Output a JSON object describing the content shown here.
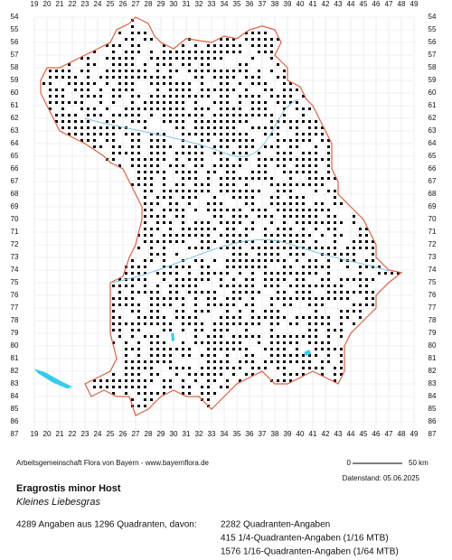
{
  "map": {
    "x_labels": [
      19,
      20,
      21,
      22,
      23,
      24,
      25,
      26,
      27,
      28,
      29,
      30,
      31,
      32,
      33,
      34,
      35,
      36,
      37,
      38,
      39,
      40,
      41,
      42,
      43,
      44,
      45,
      46,
      47,
      48,
      49
    ],
    "y_labels": [
      54,
      55,
      56,
      57,
      58,
      59,
      60,
      61,
      62,
      63,
      64,
      65,
      66,
      67,
      68,
      69,
      70,
      71,
      72,
      73,
      74,
      75,
      76,
      77,
      78,
      79,
      80,
      81,
      82,
      83,
      84,
      85,
      86,
      87
    ],
    "scale": {
      "start": "0",
      "end": "50 km"
    }
  },
  "credit": "Arbeitsgemeinschaft Flora von Bayern - www.bayernflora.de",
  "date": "Datenstand: 05.06.2025",
  "species": {
    "scientific": "Eragrostis minor Host",
    "common": "Kleines Liebesgras"
  },
  "stats": {
    "summary": "4289 Angaben aus 1296 Quadranten, davon:",
    "lines": [
      "2282 Quadranten-Angaben",
      "415 1/4-Quadranten-Angaben (1/16 MTB)",
      "1576 1/16-Quadranten-Angaben (1/64 MTB)"
    ]
  }
}
